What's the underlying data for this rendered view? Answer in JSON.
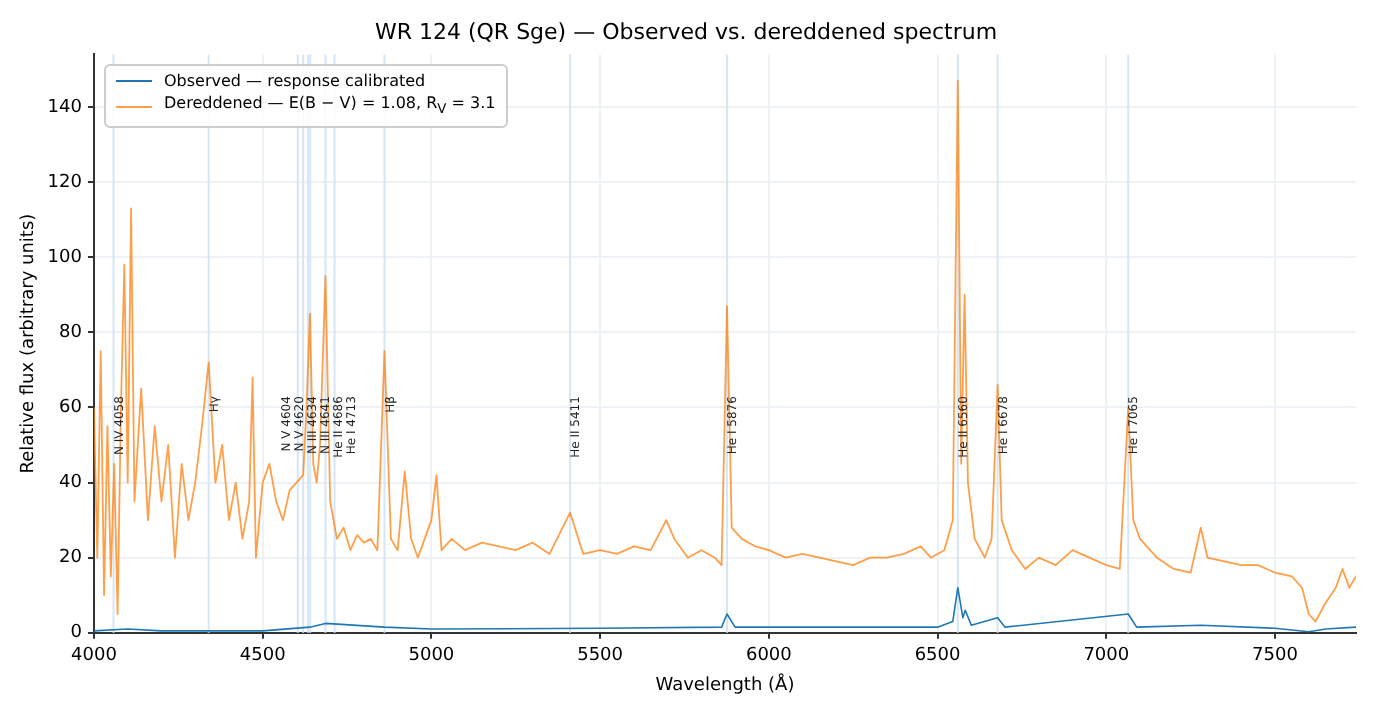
{
  "chart_data": {
    "type": "line",
    "title": "WR 124 (QR Sge) — Observed vs. dereddened spectrum",
    "xlabel": "Wavelength (Å)",
    "ylabel": "Relative flux (arbitrary units)",
    "xlim": [
      4000,
      7740
    ],
    "xticks": [
      4000,
      4500,
      5000,
      5500,
      6000,
      6500,
      7000,
      7500
    ],
    "ylim": [
      0,
      154
    ],
    "yticks": [
      0,
      20,
      40,
      60,
      80,
      100,
      120,
      140
    ],
    "grid": true,
    "legend": "top left",
    "marker": "none",
    "line_style": "solid",
    "series": [
      {
        "name": "Observed — response calibrated",
        "color": "#1f77b4",
        "x": [
          4000,
          4100,
          4200,
          4500,
          4640,
          4686,
          4861,
          5000,
          5500,
          5860,
          5876,
          5900,
          6500,
          6545,
          6560,
          6575,
          6582,
          6600,
          6678,
          6700,
          7065,
          7090,
          7280,
          7500,
          7600,
          7650,
          7740
        ],
        "values": [
          0.5,
          1,
          0.5,
          0.5,
          1.5,
          2.5,
          1.5,
          1,
          1.2,
          1.5,
          5,
          1.5,
          1.5,
          3,
          12,
          4,
          6,
          2,
          4,
          1.5,
          5,
          1.5,
          2,
          1.2,
          0.3,
          1,
          1.5
        ]
      },
      {
        "name": "Dereddened — E(B − V) = 1.08, R$_{V}$ = 3.1",
        "color": "#ff7f0e",
        "x": [
          4000,
          4010,
          4020,
          4030,
          4040,
          4050,
          4060,
          4070,
          4080,
          4090,
          4100,
          4110,
          4120,
          4140,
          4160,
          4180,
          4200,
          4220,
          4240,
          4260,
          4280,
          4300,
          4320,
          4340,
          4360,
          4380,
          4400,
          4420,
          4440,
          4460,
          4470,
          4480,
          4500,
          4520,
          4540,
          4560,
          4580,
          4600,
          4620,
          4630,
          4640,
          4650,
          4660,
          4670,
          4686,
          4700,
          4720,
          4740,
          4760,
          4780,
          4800,
          4820,
          4840,
          4861,
          4880,
          4900,
          4921,
          4940,
          4960,
          4980,
          5000,
          5015,
          5030,
          5060,
          5100,
          5150,
          5200,
          5250,
          5300,
          5350,
          5411,
          5450,
          5500,
          5550,
          5600,
          5650,
          5696,
          5720,
          5760,
          5800,
          5840,
          5860,
          5876,
          5890,
          5920,
          5960,
          6000,
          6050,
          6100,
          6150,
          6200,
          6250,
          6300,
          6350,
          6400,
          6450,
          6480,
          6520,
          6545,
          6560,
          6570,
          6580,
          6590,
          6610,
          6640,
          6660,
          6678,
          6690,
          6720,
          6760,
          6800,
          6850,
          6900,
          6950,
          7000,
          7040,
          7065,
          7080,
          7100,
          7150,
          7200,
          7250,
          7280,
          7300,
          7350,
          7400,
          7450,
          7500,
          7550,
          7580,
          7600,
          7620,
          7650,
          7680,
          7700,
          7720,
          7740
        ],
        "values": [
          60,
          20,
          75,
          10,
          55,
          15,
          45,
          5,
          60,
          98,
          40,
          113,
          35,
          65,
          30,
          55,
          35,
          50,
          20,
          45,
          30,
          40,
          55,
          72,
          40,
          50,
          30,
          40,
          25,
          35,
          68,
          20,
          40,
          45,
          35,
          30,
          38,
          40,
          42,
          60,
          85,
          45,
          40,
          50,
          95,
          35,
          25,
          28,
          22,
          26,
          24,
          25,
          22,
          75,
          25,
          22,
          43,
          25,
          20,
          25,
          30,
          42,
          22,
          25,
          22,
          24,
          23,
          22,
          24,
          21,
          32,
          21,
          22,
          21,
          23,
          22,
          30,
          25,
          20,
          22,
          20,
          18,
          87,
          28,
          25,
          23,
          22,
          20,
          21,
          20,
          19,
          18,
          20,
          20,
          21,
          23,
          20,
          22,
          30,
          147,
          45,
          90,
          40,
          25,
          20,
          25,
          66,
          30,
          22,
          17,
          20,
          18,
          22,
          20,
          18,
          17,
          60,
          30,
          25,
          20,
          17,
          16,
          28,
          20,
          19,
          18,
          18,
          16,
          15,
          12,
          5,
          3,
          8,
          12,
          17,
          12,
          15
        ]
      }
    ],
    "ref_lines": [
      {
        "axis": "x",
        "value": 4058,
        "label": "N IV 4058",
        "color": "#d6e6f4"
      },
      {
        "axis": "x",
        "value": 4340,
        "label": "Hγ",
        "color": "#d6e6f4"
      },
      {
        "axis": "x",
        "value": 4604,
        "label": "N V 4604",
        "color": "#d6e6f4"
      },
      {
        "axis": "x",
        "value": 4620,
        "label": "N V 4620",
        "color": "#d6e6f4"
      },
      {
        "axis": "x",
        "value": 4634,
        "label": "N III 4634",
        "color": "#d6e6f4"
      },
      {
        "axis": "x",
        "value": 4641,
        "label": "N III 4641",
        "color": "#d6e6f4"
      },
      {
        "axis": "x",
        "value": 4686,
        "label": "He II 4686",
        "color": "#d6e6f4"
      },
      {
        "axis": "x",
        "value": 4713,
        "label": "He I 4713",
        "color": "#d6e6f4"
      },
      {
        "axis": "x",
        "value": 4861,
        "label": "Hβ",
        "color": "#d6e6f4"
      },
      {
        "axis": "x",
        "value": 5411,
        "label": "He II 5411",
        "color": "#d6e6f4"
      },
      {
        "axis": "x",
        "value": 5876,
        "label": "He I 5876",
        "color": "#d6e6f4"
      },
      {
        "axis": "x",
        "value": 6560,
        "label": "He II 6560",
        "color": "#d6e6f4"
      },
      {
        "axis": "x",
        "value": 6678,
        "label": "He I 6678",
        "color": "#d6e6f4"
      },
      {
        "axis": "x",
        "value": 7065,
        "label": "He I 7065",
        "color": "#d6e6f4"
      }
    ]
  }
}
